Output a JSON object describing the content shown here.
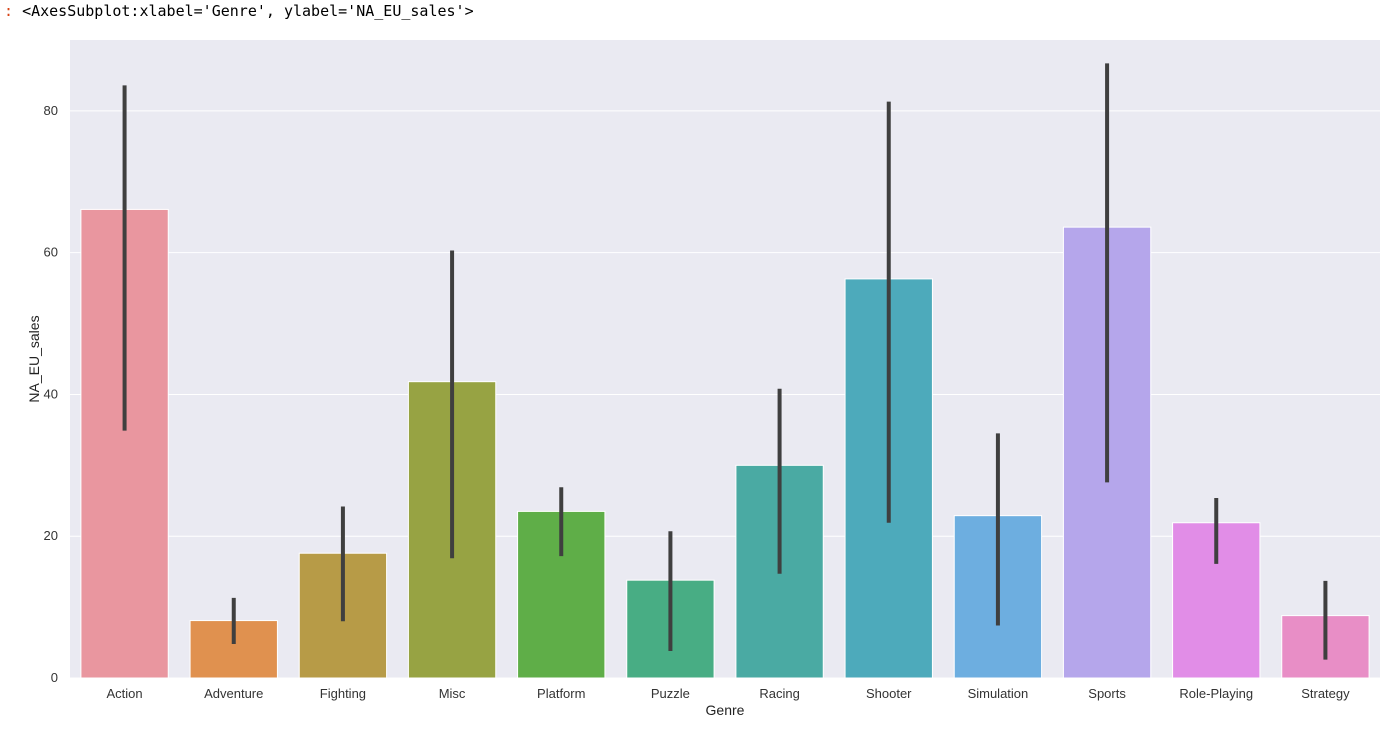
{
  "output": {
    "prompt": ":",
    "repr": "<AxesSubplot:xlabel='Genre', ylabel='NA_EU_sales'>"
  },
  "chart_data": {
    "type": "bar",
    "title": "",
    "xlabel": "Genre",
    "ylabel": "NA_EU_sales",
    "ylim": [
      0,
      90
    ],
    "yticks": [
      0,
      20,
      40,
      60,
      80
    ],
    "grid": true,
    "categories": [
      "Action",
      "Adventure",
      "Fighting",
      "Misc",
      "Platform",
      "Puzzle",
      "Racing",
      "Shooter",
      "Simulation",
      "Sports",
      "Role-Playing",
      "Strategy"
    ],
    "values": [
      66.1,
      8.1,
      17.6,
      41.8,
      23.5,
      13.8,
      30.0,
      56.3,
      22.9,
      63.6,
      21.9,
      8.8
    ],
    "error_bars": [
      [
        34.9,
        83.6
      ],
      [
        4.8,
        11.3
      ],
      [
        8.0,
        24.2
      ],
      [
        16.9,
        60.3
      ],
      [
        17.2,
        26.9
      ],
      [
        3.8,
        20.7
      ],
      [
        14.7,
        40.8
      ],
      [
        21.9,
        81.3
      ],
      [
        7.4,
        34.5
      ],
      [
        27.6,
        86.7
      ],
      [
        16.1,
        25.4
      ],
      [
        2.6,
        13.7
      ]
    ],
    "colors": [
      "#e9969f",
      "#e0914f",
      "#b79b47",
      "#97a343",
      "#5fae48",
      "#48ad84",
      "#4aaaa3",
      "#4daabb",
      "#6daee0",
      "#b5a6eb",
      "#e18de7",
      "#e88ec6"
    ],
    "background": "#eaeaf2",
    "error_color": "#3f3f3f"
  }
}
